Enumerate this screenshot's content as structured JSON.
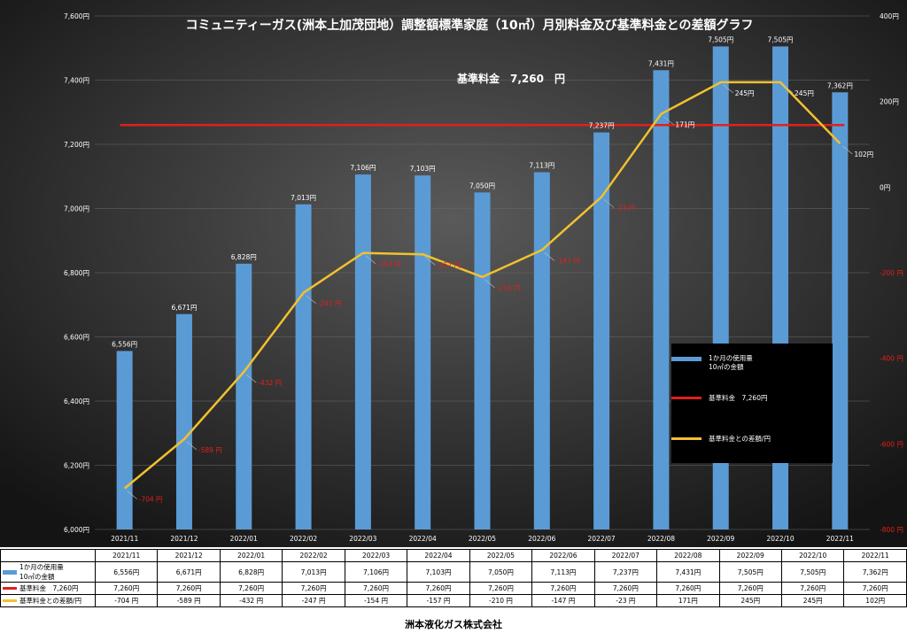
{
  "chart_data": {
    "type": "bar",
    "title": "コミュニティーガス(洲本上加茂団地）調整額標準家庭（10㎥）月別料金及び基準料金との差額グラフ",
    "annotation": "基準料金　7,260　円",
    "categories": [
      "2021/11",
      "2021/12",
      "2022/01",
      "2022/02",
      "2022/03",
      "2022/04",
      "2022/05",
      "2022/06",
      "2022/07",
      "2022/08",
      "2022/09",
      "2022/10",
      "2022/11"
    ],
    "series": [
      {
        "name": "1か月の使用量 10㎥の金額",
        "type": "bar",
        "axis": "left",
        "color": "#5b9bd5",
        "values": [
          6556,
          6671,
          6828,
          7013,
          7106,
          7103,
          7050,
          7113,
          7237,
          7431,
          7505,
          7505,
          7362
        ],
        "labels": [
          "6,556円",
          "6,671円",
          "6,828円",
          "7,013円",
          "7,106円",
          "7,103円",
          "7,050円",
          "7,113円",
          "7,237円",
          "7,431円",
          "7,505円",
          "7,505円",
          "7,362円"
        ]
      },
      {
        "name": "基準料金　7,260円",
        "type": "line",
        "axis": "left",
        "color": "#e0201b",
        "values": [
          7260,
          7260,
          7260,
          7260,
          7260,
          7260,
          7260,
          7260,
          7260,
          7260,
          7260,
          7260,
          7260
        ],
        "labels": [
          "7,260円",
          "7,260円",
          "7,260円",
          "7,260円",
          "7,260円",
          "7,260円",
          "7,260円",
          "7,260円",
          "7,260円",
          "7,260円",
          "7,260円",
          "7,260円",
          "7,260円"
        ]
      },
      {
        "name": "基準料金との差額/円",
        "type": "line",
        "axis": "right",
        "color": "#f2c12e",
        "values": [
          -704,
          -589,
          -432,
          -247,
          -154,
          -157,
          -210,
          -147,
          -23,
          171,
          245,
          245,
          102
        ],
        "labels": [
          "-704 円",
          "-589 円",
          "-432 円",
          "-247 円",
          "-154 円",
          "-157 円",
          "-210 円",
          "-147 円",
          "-23 円",
          "171円",
          "245円",
          "245円",
          "102円"
        ]
      }
    ],
    "left_axis": {
      "ylim": [
        6000,
        7600
      ],
      "ticks": [
        6000,
        6200,
        6400,
        6600,
        6800,
        7000,
        7200,
        7400,
        7600
      ],
      "tick_labels": [
        "6,000円",
        "6,200円",
        "6,400円",
        "6,600円",
        "6,800円",
        "7,000円",
        "7,200円",
        "7,400円",
        "7,600円"
      ]
    },
    "right_axis": {
      "ylim": [
        -800,
        400
      ],
      "ticks": [
        -800,
        -600,
        -400,
        -200,
        0,
        200,
        400
      ],
      "tick_labels": [
        "-800 円",
        "-600 円",
        "-400 円",
        "-200 円",
        "0円",
        "200円",
        "400円"
      ]
    },
    "grid": true,
    "legend_position": "lower-right"
  },
  "legend": [
    {
      "text": "1か月の使用量\n10㎥の金額",
      "color": "#5b9bd5"
    },
    {
      "text": "基準料金　7,260円",
      "color": "#e0201b"
    },
    {
      "text": "基準料金との差額/円",
      "color": "#f2c12e"
    }
  ],
  "table": {
    "row_headers": [
      "1か月の使用量\n10㎥の金額",
      "基準料金　7,260円",
      "基準料金との差額/円"
    ]
  },
  "footer": "洲本液化ガス株式会社"
}
